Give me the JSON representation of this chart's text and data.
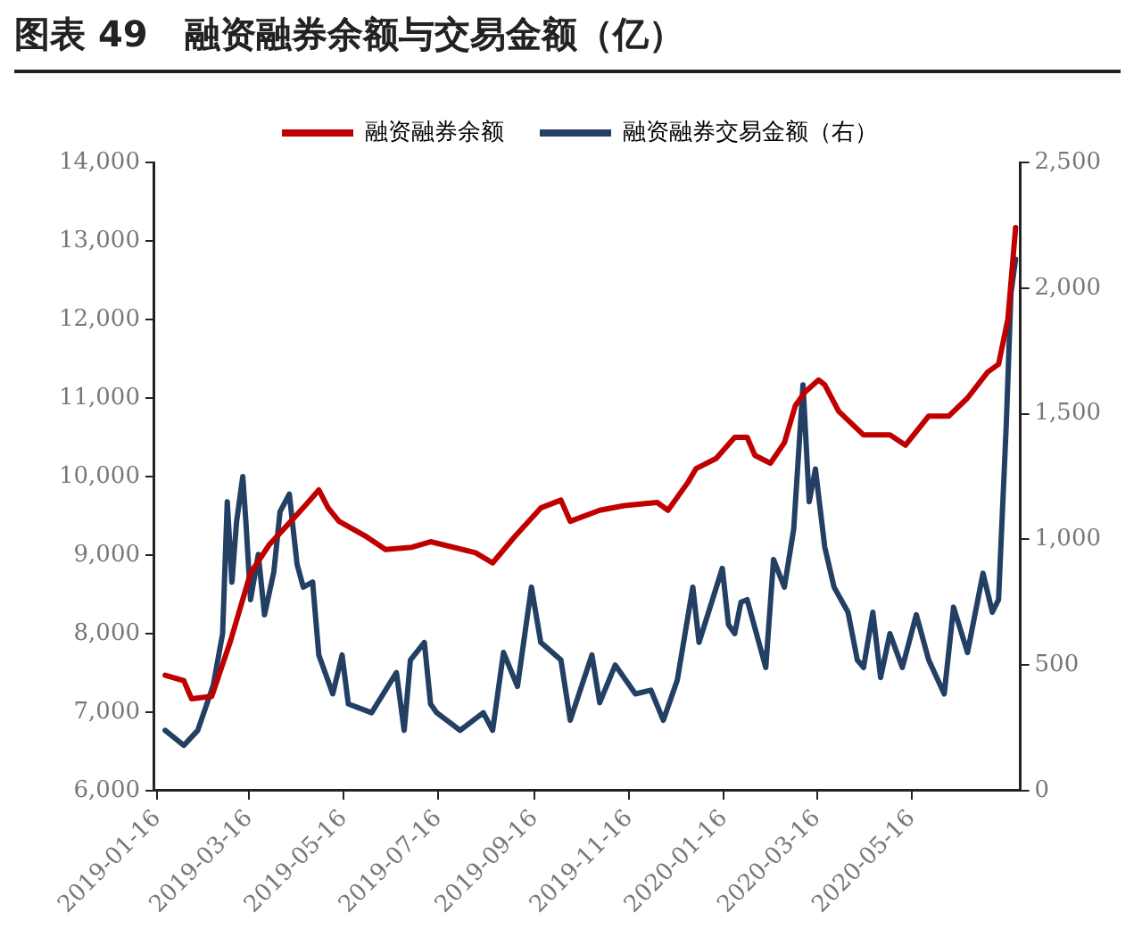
{
  "chart_data": {
    "type": "line",
    "title": "图表 49   融资融券余额与交易金额（亿）",
    "legend": "top",
    "grid": false,
    "marker": "none",
    "line_style": "solid",
    "xlim": [
      "2019-01-14",
      "2020-07-25"
    ],
    "xticks": [
      "2019-01-16",
      "2019-03-16",
      "2019-05-16",
      "2019-07-16",
      "2019-09-16",
      "2019-11-16",
      "2020-01-16",
      "2020-03-16",
      "2020-05-16"
    ],
    "ylim": [
      6000,
      14000
    ],
    "yticks": [
      {
        "value": 6000,
        "label": "6,000"
      },
      {
        "value": 7000,
        "label": "7,000"
      },
      {
        "value": 8000,
        "label": "8,000"
      },
      {
        "value": 9000,
        "label": "9,000"
      },
      {
        "value": 10000,
        "label": "10,000"
      },
      {
        "value": 11000,
        "label": "11,000"
      },
      {
        "value": 12000,
        "label": "12,000"
      },
      {
        "value": 13000,
        "label": "13,000"
      },
      {
        "value": 14000,
        "label": "14,000"
      }
    ],
    "y2lim": [
      0,
      2500
    ],
    "y2ticks": [
      0,
      500,
      {
        "value": 1000,
        "label": "1,000"
      },
      {
        "value": 1500,
        "label": "1,500"
      },
      {
        "value": 2000,
        "label": "2,000"
      },
      {
        "value": 2500,
        "label": "2,500"
      }
    ],
    "series": [
      {
        "name": "融资融券余额",
        "color": "#c00000",
        "x": [
          "2019-01-21",
          "2019-02-02",
          "2019-02-07",
          "2019-02-20",
          "2019-03-04",
          "2019-03-17",
          "2019-03-29",
          "2019-04-12",
          "2019-04-23",
          "2019-04-30",
          "2019-05-06",
          "2019-05-13",
          "2019-05-31",
          "2019-06-12",
          "2019-06-29",
          "2019-07-11",
          "2019-08-09",
          "2019-08-20",
          "2019-09-03",
          "2019-09-20",
          "2019-10-03",
          "2019-10-09",
          "2019-10-28",
          "2019-11-13",
          "2019-12-04",
          "2019-12-11",
          "2019-12-24",
          "2019-12-29",
          "2020-01-11",
          "2020-01-23",
          "2020-01-31",
          "2020-02-05",
          "2020-02-15",
          "2020-02-24",
          "2020-03-02",
          "2020-03-08",
          "2020-03-17",
          "2020-03-21",
          "2020-03-30",
          "2020-04-15",
          "2020-05-02",
          "2020-05-12",
          "2020-05-27",
          "2020-06-09",
          "2020-06-21",
          "2020-07-04",
          "2020-07-11",
          "2020-07-17",
          "2020-07-22"
        ],
        "values": [
          7470,
          7400,
          7170,
          7200,
          7900,
          8770,
          9130,
          9430,
          9670,
          9830,
          9600,
          9430,
          9230,
          9070,
          9100,
          9170,
          9030,
          8900,
          9230,
          9600,
          9700,
          9430,
          9570,
          9630,
          9670,
          9570,
          9930,
          10100,
          10230,
          10500,
          10500,
          10270,
          10170,
          10430,
          10900,
          11070,
          11230,
          11170,
          10830,
          10530,
          10530,
          10400,
          10770,
          10770,
          11000,
          11330,
          11430,
          12000,
          13170
        ]
      },
      {
        "name": "融资融券交易金额（右）",
        "color": "#233f63",
        "axis": "y2",
        "x": [
          "2019-01-21",
          "2019-02-02",
          "2019-02-11",
          "2019-02-21",
          "2019-02-27",
          "2019-03-02",
          "2019-03-05",
          "2019-03-08",
          "2019-03-12",
          "2019-03-14",
          "2019-03-17",
          "2019-03-22",
          "2019-03-26",
          "2019-04-01",
          "2019-04-05",
          "2019-04-11",
          "2019-04-16",
          "2019-04-20",
          "2019-04-26",
          "2019-04-30",
          "2019-05-09",
          "2019-05-15",
          "2019-05-19",
          "2019-06-03",
          "2019-06-19",
          "2019-06-24",
          "2019-06-28",
          "2019-07-07",
          "2019-07-11",
          "2019-07-15",
          "2019-07-30",
          "2019-08-14",
          "2019-08-20",
          "2019-08-27",
          "2019-09-05",
          "2019-09-14",
          "2019-09-20",
          "2019-10-03",
          "2019-10-09",
          "2019-10-23",
          "2019-10-28",
          "2019-11-07",
          "2019-11-20",
          "2019-11-30",
          "2019-12-08",
          "2019-12-17",
          "2019-12-27",
          "2019-12-31",
          "2020-01-15",
          "2020-01-19",
          "2020-01-23",
          "2020-01-27",
          "2020-01-31",
          "2020-02-12",
          "2020-02-17",
          "2020-02-24",
          "2020-03-01",
          "2020-03-07",
          "2020-03-11",
          "2020-03-15",
          "2020-03-21",
          "2020-03-27",
          "2020-04-05",
          "2020-04-11",
          "2020-04-15",
          "2020-04-21",
          "2020-04-26",
          "2020-05-02",
          "2020-05-10",
          "2020-05-19",
          "2020-05-27",
          "2020-06-06",
          "2020-06-12",
          "2020-06-21",
          "2020-07-01",
          "2020-07-07",
          "2020-07-11",
          "2020-07-16",
          "2020-07-19",
          "2020-07-22"
        ],
        "values": [
          240,
          180,
          240,
          420,
          625,
          1150,
          830,
          1070,
          1250,
          1070,
          760,
          940,
          700,
          870,
          1110,
          1180,
          900,
          810,
          830,
          540,
          385,
          540,
          345,
          310,
          470,
          240,
          520,
          590,
          345,
          310,
          240,
          310,
          240,
          550,
          415,
          810,
          590,
          520,
          280,
          540,
          350,
          500,
          385,
          400,
          280,
          440,
          810,
          590,
          885,
          660,
          625,
          750,
          760,
          490,
          920,
          810,
          1040,
          1615,
          1150,
          1280,
          970,
          810,
          710,
          520,
          490,
          710,
          450,
          625,
          490,
          700,
          520,
          385,
          730,
          550,
          865,
          710,
          760,
          1460,
          1980,
          2115
        ]
      }
    ]
  }
}
